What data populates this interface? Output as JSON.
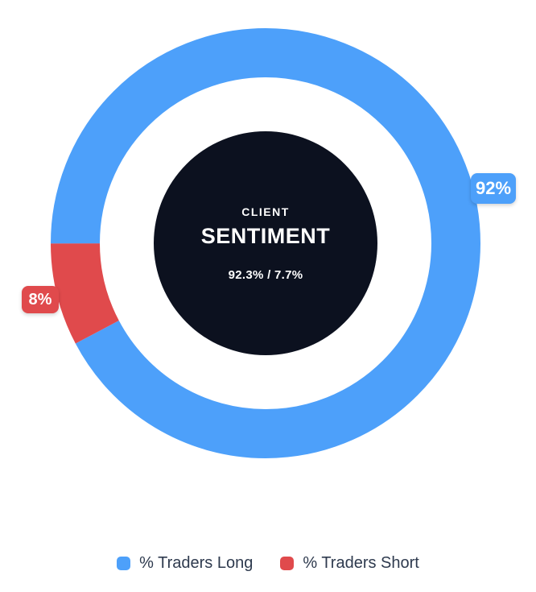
{
  "chart_data": {
    "type": "pie",
    "subtype": "donut",
    "title": "CLIENT SENTIMENT",
    "center_text": {
      "top": "CLIENT",
      "main": "SENTIMENT",
      "values": "92.3% / 7.7%"
    },
    "series": [
      {
        "name": "% Traders Long",
        "value": 92.3,
        "badge": "92%",
        "color": "#4DA0FA"
      },
      {
        "name": "% Traders Short",
        "value": 7.7,
        "badge": "8%",
        "color": "#E04A4C"
      }
    ],
    "start_angle": "left (9 o'clock)",
    "direction": "clockwise",
    "legend_position": "bottom",
    "background_color": "#FFFFFF",
    "center_disc_color": "#0C111F",
    "legend_text_color": "#2E3A4E"
  }
}
